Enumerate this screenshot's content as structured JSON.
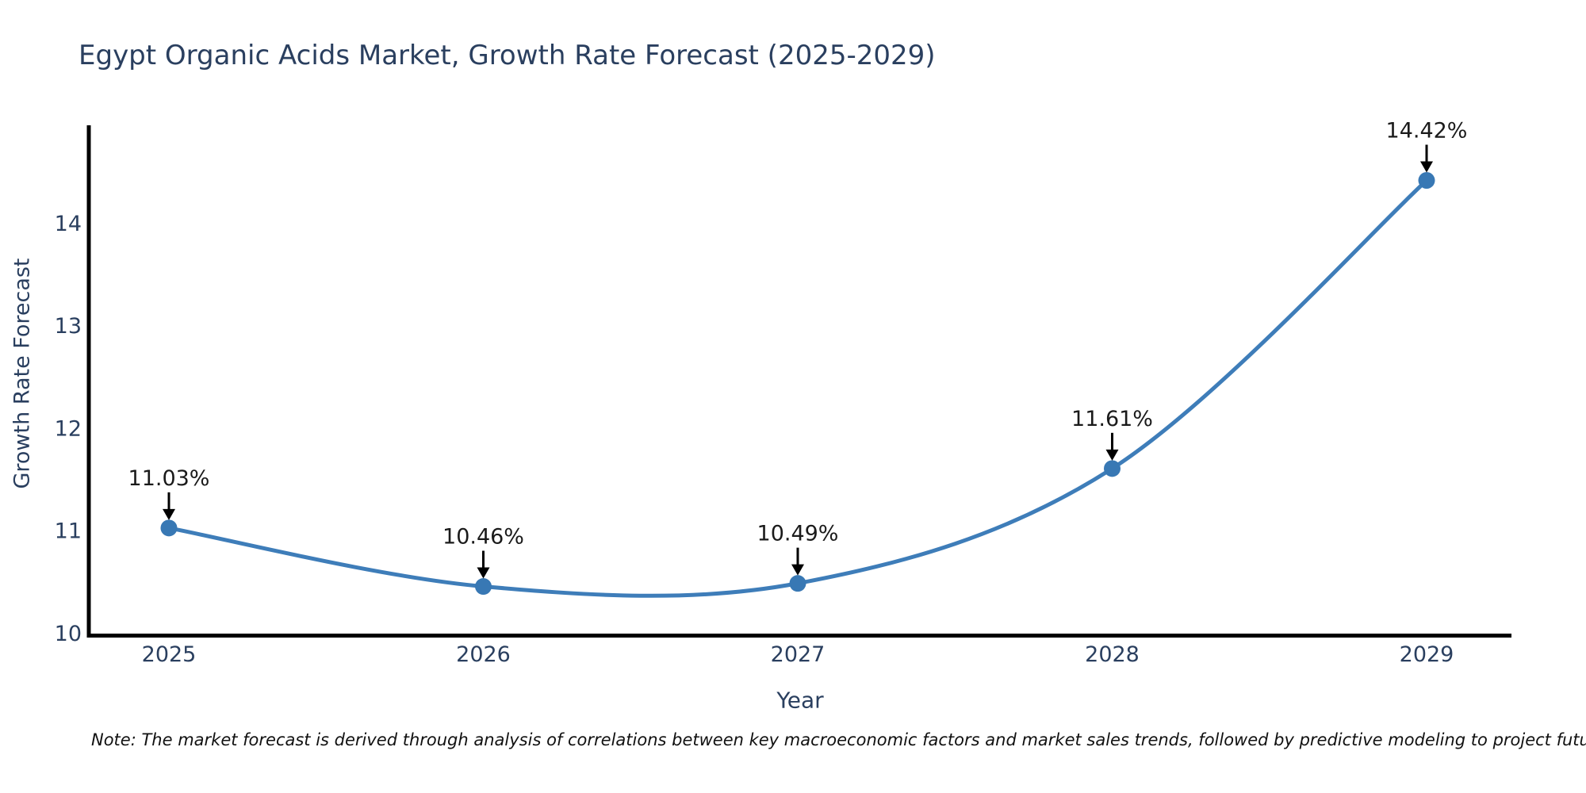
{
  "chart_data": {
    "type": "line",
    "title": "Egypt Organic Acids Market, Growth Rate Forecast (2025-2029)",
    "xlabel": "Year",
    "ylabel": "Growth Rate Forecast",
    "categories": [
      "2025",
      "2026",
      "2027",
      "2028",
      "2029"
    ],
    "series": [
      {
        "name": "Growth Rate Forecast",
        "values": [
          11.03,
          10.46,
          10.49,
          11.61,
          14.42
        ]
      }
    ],
    "point_labels": [
      "11.03%",
      "10.46%",
      "10.49%",
      "11.61%",
      "14.42%"
    ],
    "yticks": [
      10,
      11,
      12,
      13,
      14
    ],
    "ylim": [
      10,
      14.95
    ],
    "grid": false,
    "legend": "none",
    "curve": "spline",
    "colors": {
      "line": "#3e7db9",
      "marker": "#3878b4",
      "axis": "#000000",
      "tick_label": "#2a3f5f",
      "annotation_text": "#1a1a1a",
      "annotation_arrow": "#000000"
    }
  },
  "note": "Note: The market forecast is derived through analysis of correlations between key macroeconomic factors and market sales trends, followed by predictive modeling to project future sales"
}
